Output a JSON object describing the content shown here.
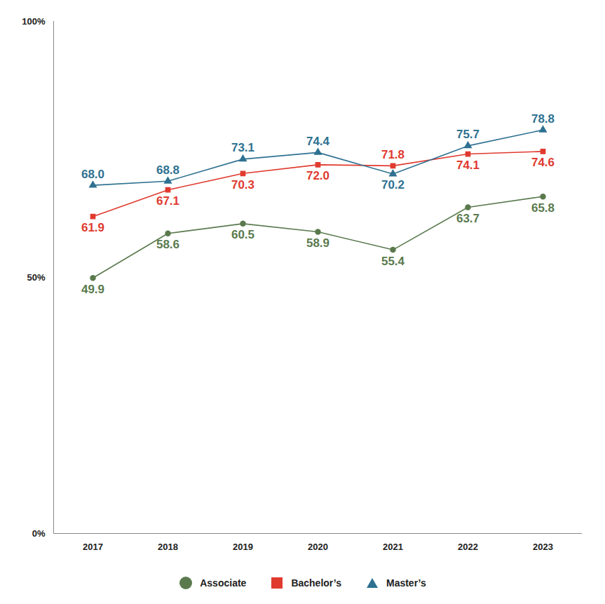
{
  "chart_data": {
    "type": "line",
    "categories": [
      "2017",
      "2018",
      "2019",
      "2020",
      "2021",
      "2022",
      "2023"
    ],
    "series": [
      {
        "name": "Associate",
        "color": "#5a7a4e",
        "marker": "circle",
        "values": [
          49.9,
          58.6,
          60.5,
          58.9,
          55.4,
          63.7,
          65.8
        ],
        "value_labels": [
          "49.9",
          "58.6",
          "60.5",
          "58.9",
          "55.4",
          "63.7",
          "65.8"
        ]
      },
      {
        "name": "Bachelor’s",
        "color": "#e03a2f",
        "marker": "square",
        "values": [
          61.9,
          67.1,
          70.3,
          72.0,
          71.8,
          74.1,
          74.6
        ],
        "value_labels": [
          "61.9",
          "67.1",
          "70.3",
          "72.0",
          "71.8",
          "74.1",
          "74.6"
        ]
      },
      {
        "name": "Master’s",
        "color": "#2e7191",
        "marker": "triangle",
        "values": [
          68.0,
          68.8,
          73.1,
          74.4,
          70.2,
          75.7,
          78.8
        ],
        "value_labels": [
          "68.0",
          "68.8",
          "73.1",
          "74.4",
          "70.2",
          "75.7",
          "78.8"
        ]
      }
    ],
    "ylim": [
      0,
      100
    ],
    "yticks": [
      {
        "value": 0,
        "label": "0%"
      },
      {
        "value": 50,
        "label": "50%"
      },
      {
        "value": 100,
        "label": "100%"
      }
    ],
    "grid": false,
    "legend": "bottom",
    "data_labels": true
  }
}
